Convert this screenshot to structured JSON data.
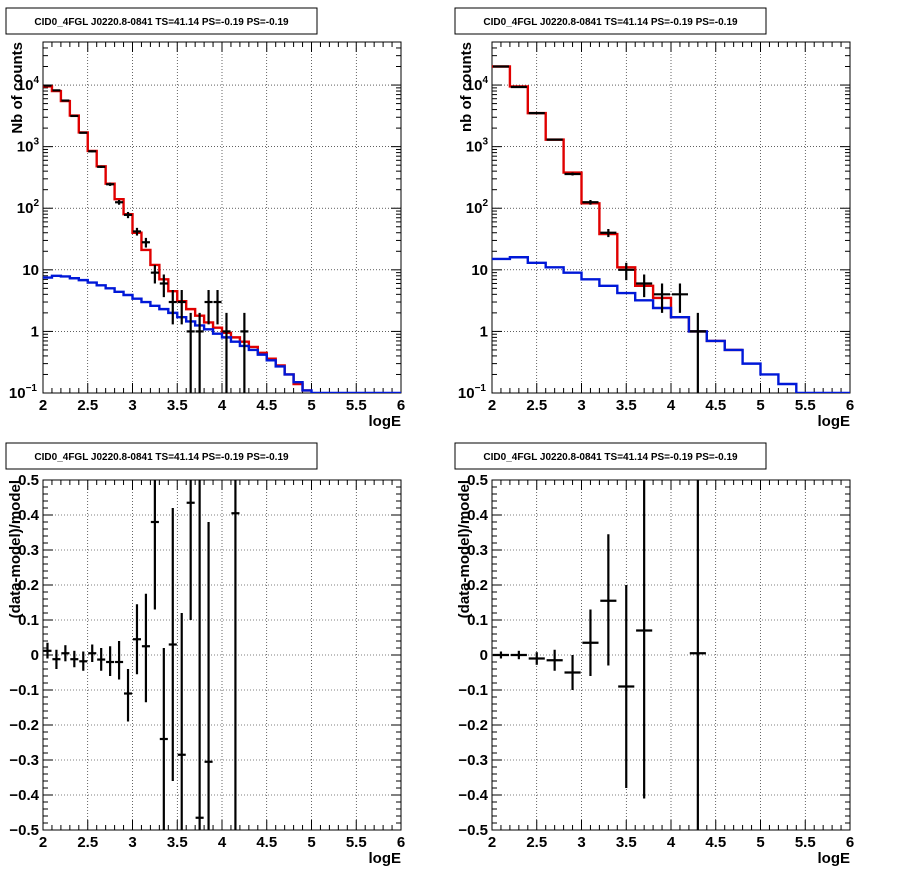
{
  "colors": {
    "data": "#000000",
    "total_model": "#e00000",
    "component_model": "#0018d8",
    "grid": "#000000",
    "frame": "#000000"
  },
  "chart_data": [
    {
      "id": "top-left",
      "type": "histogram",
      "title": "CID0_4FGL J0220.8-0841 TS=41.14 PS=-0.19 PS=-0.19",
      "xlabel": "logE",
      "ylabel": "Nb of counts",
      "xlim": [
        2,
        6
      ],
      "ylim": [
        0.1,
        50000
      ],
      "yscale": "log",
      "grid": true,
      "xticks": [
        "2",
        "2.5",
        "3",
        "3.5",
        "4",
        "4.5",
        "5",
        "5.5",
        "6"
      ],
      "yticks": [
        {
          "v": 0.1,
          "t": "10",
          "e": "−1"
        },
        {
          "v": 1,
          "t": "1"
        },
        {
          "v": 10,
          "t": "10"
        },
        {
          "v": 100,
          "t": "10",
          "e": "2"
        },
        {
          "v": 1000,
          "t": "10",
          "e": "3"
        },
        {
          "v": 10000,
          "t": "10",
          "e": "4"
        }
      ],
      "bin_edges": [
        2,
        2.1,
        2.2,
        2.3,
        2.4,
        2.5,
        2.6,
        2.7,
        2.8,
        2.9,
        3,
        3.1,
        3.2,
        3.3,
        3.4,
        3.5,
        3.6,
        3.7,
        3.8,
        3.9,
        4,
        4.1,
        4.2,
        4.3,
        4.4,
        4.5,
        4.6,
        4.7,
        4.8,
        4.9,
        5,
        5.1,
        5.2,
        5.3,
        5.4,
        5.5,
        5.6,
        5.7,
        5.8,
        5.9,
        6
      ],
      "series": [
        {
          "role": "total",
          "values": [
            9500,
            8000,
            5500,
            3200,
            1700,
            850,
            480,
            250,
            140,
            80,
            40,
            21,
            12,
            7,
            4.5,
            3.1,
            2.3,
            1.8,
            1.4,
            1.15,
            0.95,
            0.8,
            0.68,
            0.56,
            0.45,
            0.36,
            0.28,
            0.2,
            0.14,
            0.11,
            null,
            null,
            null,
            null,
            null,
            null,
            null,
            null,
            null,
            null
          ]
        },
        {
          "role": "component",
          "values": [
            7.5,
            8.0,
            7.8,
            7.3,
            6.8,
            6.2,
            5.6,
            5.0,
            4.4,
            3.9,
            3.4,
            3.0,
            2.6,
            2.3,
            2.0,
            1.7,
            1.45,
            1.25,
            1.08,
            0.92,
            0.8,
            0.68,
            0.58,
            0.5,
            0.42,
            0.34,
            0.27,
            0.2,
            0.15,
            0.11,
            0.1,
            0.1,
            0.1,
            0.1,
            0.1,
            0.1,
            0.1,
            0.1,
            0.1,
            0.1
          ]
        }
      ],
      "points": [
        {
          "x": 2.05,
          "y": 9800,
          "lo": 9700,
          "hi": 9900
        },
        {
          "x": 2.15,
          "y": 8200,
          "lo": 8100,
          "hi": 8300
        },
        {
          "x": 2.25,
          "y": 5600,
          "lo": 5520,
          "hi": 5680
        },
        {
          "x": 2.35,
          "y": 3150,
          "lo": 3090,
          "hi": 3210
        },
        {
          "x": 2.45,
          "y": 1680,
          "lo": 1640,
          "hi": 1720
        },
        {
          "x": 2.55,
          "y": 840,
          "lo": 810,
          "hi": 870
        },
        {
          "x": 2.65,
          "y": 470,
          "lo": 450,
          "hi": 490
        },
        {
          "x": 2.75,
          "y": 245,
          "lo": 230,
          "hi": 260
        },
        {
          "x": 2.85,
          "y": 125,
          "lo": 114,
          "hi": 136
        },
        {
          "x": 2.95,
          "y": 78,
          "lo": 69,
          "hi": 87
        },
        {
          "x": 3.05,
          "y": 42,
          "lo": 36,
          "hi": 48
        },
        {
          "x": 3.15,
          "y": 28,
          "lo": 23,
          "hi": 33
        },
        {
          "x": 3.25,
          "y": 9,
          "lo": 6,
          "hi": 12
        },
        {
          "x": 3.35,
          "y": 6,
          "lo": 3.6,
          "hi": 8.4
        },
        {
          "x": 3.45,
          "y": 3,
          "lo": 1.3,
          "hi": 4.7
        },
        {
          "x": 3.55,
          "y": 3,
          "lo": 1.3,
          "hi": 4.7
        },
        {
          "x": 3.65,
          "y": 1,
          "lo": 0.1,
          "hi": 2
        },
        {
          "x": 3.75,
          "y": 1,
          "lo": 0.1,
          "hi": 2
        },
        {
          "x": 3.85,
          "y": 3,
          "lo": 1.3,
          "hi": 4.7
        },
        {
          "x": 3.95,
          "y": 3,
          "lo": 1.3,
          "hi": 4.7
        },
        {
          "x": 4.05,
          "y": 1,
          "lo": 0.1,
          "hi": 2
        },
        {
          "x": 4.25,
          "y": 1,
          "lo": 0.1,
          "hi": 2
        }
      ]
    },
    {
      "id": "top-right",
      "type": "histogram",
      "title": "CID0_4FGL J0220.8-0841 TS=41.14 PS=-0.19 PS=-0.19",
      "xlabel": "logE",
      "ylabel": "nb of counts",
      "xlim": [
        2,
        6
      ],
      "ylim": [
        0.1,
        50000
      ],
      "yscale": "log",
      "grid": true,
      "xticks": [
        "2",
        "2.5",
        "3",
        "3.5",
        "4",
        "4.5",
        "5",
        "5.5",
        "6"
      ],
      "yticks": [
        {
          "v": 0.1,
          "t": "10",
          "e": "−1"
        },
        {
          "v": 1,
          "t": "1"
        },
        {
          "v": 10,
          "t": "10"
        },
        {
          "v": 100,
          "t": "10",
          "e": "2"
        },
        {
          "v": 1000,
          "t": "10",
          "e": "3"
        },
        {
          "v": 10000,
          "t": "10",
          "e": "4"
        }
      ],
      "bin_edges": [
        2,
        2.2,
        2.4,
        2.6,
        2.8,
        3,
        3.2,
        3.4,
        3.6,
        3.8,
        4,
        4.2,
        4.4,
        4.6,
        4.8,
        5,
        5.2,
        5.4,
        5.6,
        5.8,
        6
      ],
      "series": [
        {
          "role": "total",
          "values": [
            20000,
            9500,
            3500,
            1300,
            380,
            120,
            38,
            11,
            5.5,
            3.5,
            1.7,
            1.0,
            0.7,
            0.5,
            null,
            null,
            null,
            null,
            null,
            null
          ]
        },
        {
          "role": "component",
          "values": [
            15,
            16,
            13,
            11,
            9,
            7,
            5.5,
            4.2,
            3.2,
            2.4,
            1.7,
            1.0,
            0.7,
            0.5,
            0.3,
            0.2,
            0.14,
            0.1,
            0.1,
            0.1
          ]
        }
      ],
      "points": [
        {
          "x": 2.1,
          "y": 20000,
          "lo": 19800,
          "hi": 20200
        },
        {
          "x": 2.3,
          "y": 9300,
          "lo": 9200,
          "hi": 9400
        },
        {
          "x": 2.5,
          "y": 3500,
          "lo": 3440,
          "hi": 3560
        },
        {
          "x": 2.7,
          "y": 1300,
          "lo": 1260,
          "hi": 1340
        },
        {
          "x": 2.9,
          "y": 360,
          "lo": 340,
          "hi": 380
        },
        {
          "x": 3.1,
          "y": 125,
          "lo": 114,
          "hi": 136
        },
        {
          "x": 3.3,
          "y": 40,
          "lo": 34,
          "hi": 46
        },
        {
          "x": 3.5,
          "y": 10,
          "lo": 6.8,
          "hi": 13
        },
        {
          "x": 3.7,
          "y": 6,
          "lo": 3.6,
          "hi": 8.4
        },
        {
          "x": 3.9,
          "y": 4,
          "lo": 2,
          "hi": 6
        },
        {
          "x": 4.1,
          "y": 4,
          "lo": 2,
          "hi": 6
        },
        {
          "x": 4.3,
          "y": 1,
          "lo": 0.1,
          "hi": 2
        }
      ]
    },
    {
      "id": "bottom-left",
      "type": "scatter",
      "title": "CID0_4FGL J0220.8-0841 TS=41.14 PS=-0.19 PS=-0.19",
      "xlabel": "logE",
      "ylabel": "(data-model)/model",
      "xlim": [
        2,
        6
      ],
      "ylim": [
        -0.5,
        0.5
      ],
      "grid": true,
      "xticks": [
        "2",
        "2.5",
        "3",
        "3.5",
        "4",
        "4.5",
        "5",
        "5.5",
        "6"
      ],
      "yticks": [
        {
          "v": -0.5,
          "t": "−0.5"
        },
        {
          "v": -0.4,
          "t": "−0.4"
        },
        {
          "v": -0.3,
          "t": "−0.3"
        },
        {
          "v": -0.2,
          "t": "−0.2"
        },
        {
          "v": -0.1,
          "t": "−0.1"
        },
        {
          "v": 0,
          "t": "0"
        },
        {
          "v": 0.1,
          "t": "0.1"
        },
        {
          "v": 0.2,
          "t": "0.2"
        },
        {
          "v": 0.3,
          "t": "0.3"
        },
        {
          "v": 0.4,
          "t": "0.4"
        },
        {
          "v": 0.5,
          "t": "0.5"
        }
      ],
      "points": [
        {
          "x": 2.05,
          "y": 0.012,
          "lo": -0.01,
          "hi": 0.035
        },
        {
          "x": 2.15,
          "y": -0.012,
          "lo": -0.04,
          "hi": 0.015
        },
        {
          "x": 2.25,
          "y": 0.005,
          "lo": -0.018,
          "hi": 0.028
        },
        {
          "x": 2.35,
          "y": -0.012,
          "lo": -0.035,
          "hi": 0.012
        },
        {
          "x": 2.45,
          "y": -0.018,
          "lo": -0.045,
          "hi": 0.01
        },
        {
          "x": 2.55,
          "y": 0.005,
          "lo": -0.02,
          "hi": 0.03
        },
        {
          "x": 2.65,
          "y": -0.013,
          "lo": -0.045,
          "hi": 0.02
        },
        {
          "x": 2.75,
          "y": -0.02,
          "lo": -0.06,
          "hi": 0.025
        },
        {
          "x": 2.85,
          "y": -0.02,
          "lo": -0.07,
          "hi": 0.04
        },
        {
          "x": 2.95,
          "y": -0.11,
          "lo": -0.19,
          "hi": -0.04
        },
        {
          "x": 3.05,
          "y": 0.045,
          "lo": -0.055,
          "hi": 0.145
        },
        {
          "x": 3.15,
          "y": 0.025,
          "lo": -0.135,
          "hi": 0.175
        },
        {
          "x": 3.25,
          "y": 0.38,
          "lo": 0.13,
          "hi": 0.5
        },
        {
          "x": 3.35,
          "y": -0.24,
          "lo": -0.5,
          "hi": 0.02
        },
        {
          "x": 3.45,
          "y": 0.03,
          "lo": -0.36,
          "hi": 0.42
        },
        {
          "x": 3.55,
          "y": -0.285,
          "lo": -0.5,
          "hi": 0.12
        },
        {
          "x": 3.65,
          "y": 0.435,
          "lo": 0.1,
          "hi": 0.5
        },
        {
          "x": 3.75,
          "y": -0.465,
          "lo": -0.5,
          "hi": 0.5
        },
        {
          "x": 3.85,
          "y": -0.305,
          "lo": -0.5,
          "hi": 0.38
        },
        {
          "x": 4.15,
          "y": 0.405,
          "lo": -0.5,
          "hi": 0.5
        }
      ]
    },
    {
      "id": "bottom-right",
      "type": "scatter",
      "title": "CID0_4FGL J0220.8-0841 TS=41.14 PS=-0.19 PS=-0.19",
      "xlabel": "logE",
      "ylabel": "(data-model)/model",
      "xlim": [
        2,
        6
      ],
      "ylim": [
        -0.5,
        0.5
      ],
      "grid": true,
      "xticks": [
        "2",
        "2.5",
        "3",
        "3.5",
        "4",
        "4.5",
        "5",
        "5.5",
        "6"
      ],
      "yticks": [
        {
          "v": -0.5,
          "t": "−0.5"
        },
        {
          "v": -0.4,
          "t": "−0.4"
        },
        {
          "v": -0.3,
          "t": "−0.3"
        },
        {
          "v": -0.2,
          "t": "−0.2"
        },
        {
          "v": -0.1,
          "t": "−0.1"
        },
        {
          "v": 0,
          "t": "0"
        },
        {
          "v": 0.1,
          "t": "0.1"
        },
        {
          "v": 0.2,
          "t": "0.2"
        },
        {
          "v": 0.3,
          "t": "0.3"
        },
        {
          "v": 0.4,
          "t": "0.4"
        },
        {
          "v": 0.5,
          "t": "0.5"
        }
      ],
      "points": [
        {
          "x": 2.1,
          "y": 0.0,
          "lo": -0.01,
          "hi": 0.01
        },
        {
          "x": 2.3,
          "y": 0.0,
          "lo": -0.012,
          "hi": 0.012
        },
        {
          "x": 2.5,
          "y": -0.01,
          "lo": -0.028,
          "hi": 0.008
        },
        {
          "x": 2.7,
          "y": -0.015,
          "lo": -0.045,
          "hi": 0.015
        },
        {
          "x": 2.9,
          "y": -0.05,
          "lo": -0.1,
          "hi": 0.0
        },
        {
          "x": 3.1,
          "y": 0.035,
          "lo": -0.06,
          "hi": 0.13
        },
        {
          "x": 3.3,
          "y": 0.155,
          "lo": -0.03,
          "hi": 0.345
        },
        {
          "x": 3.5,
          "y": -0.09,
          "lo": -0.38,
          "hi": 0.2
        },
        {
          "x": 3.7,
          "y": 0.07,
          "lo": -0.41,
          "hi": 0.5
        },
        {
          "x": 4.3,
          "y": 0.005,
          "lo": -0.5,
          "hi": 0.5
        }
      ]
    }
  ]
}
